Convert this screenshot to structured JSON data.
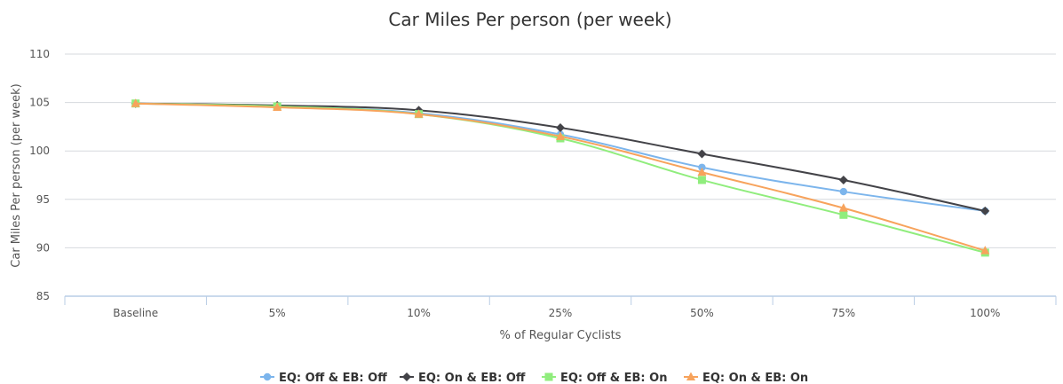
{
  "chart_data": {
    "type": "line",
    "title": "Car Miles Per person (per week)",
    "xlabel": "% of Regular Cyclists",
    "ylabel": "Car Miles Per person (per week)",
    "categories": [
      "Baseline",
      "5%",
      "10%",
      "25%",
      "50%",
      "75%",
      "100%"
    ],
    "ylim": [
      85,
      110
    ],
    "yticks": [
      85,
      90,
      95,
      100,
      105,
      110
    ],
    "grid": true,
    "legend_position": "bottom",
    "series": [
      {
        "name": "EQ: Off & EB: Off",
        "color": "#7cb5ec",
        "marker": "circle",
        "values": [
          104.9,
          104.6,
          103.9,
          101.7,
          98.3,
          95.8,
          93.8
        ]
      },
      {
        "name": "EQ: On & EB: Off",
        "color": "#434348",
        "marker": "diamond",
        "values": [
          104.9,
          104.7,
          104.2,
          102.4,
          99.7,
          97.0,
          93.8
        ]
      },
      {
        "name": "EQ: Off & EB: On",
        "color": "#90ed7d",
        "marker": "square",
        "values": [
          104.9,
          104.6,
          103.8,
          101.3,
          97.0,
          93.4,
          89.5
        ]
      },
      {
        "name": "EQ: On & EB: On",
        "color": "#f7a35c",
        "marker": "triangle",
        "values": [
          104.9,
          104.5,
          103.8,
          101.5,
          97.8,
          94.1,
          89.7
        ]
      }
    ]
  }
}
